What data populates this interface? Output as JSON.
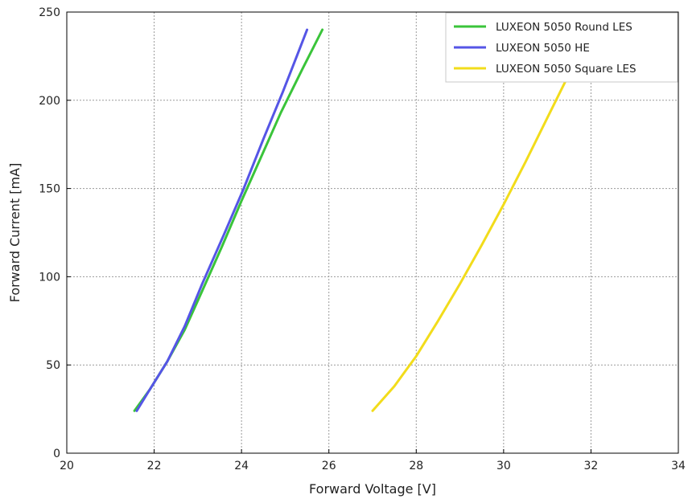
{
  "chart_data": {
    "type": "line",
    "title": "",
    "xlabel": "Forward Voltage [V]",
    "ylabel": "Forward Current [mA]",
    "xlim": [
      20,
      34
    ],
    "ylim": [
      0,
      250
    ],
    "xticks": [
      20,
      22,
      24,
      26,
      28,
      30,
      32,
      34
    ],
    "yticks": [
      0,
      50,
      100,
      150,
      200,
      250
    ],
    "grid": true,
    "legend": "top-right",
    "series": [
      {
        "name": "LUXEON 5050 Round LES",
        "color": "#3ac43a",
        "x": [
          21.55,
          21.9,
          22.3,
          22.7,
          23.1,
          23.55,
          24.0,
          24.45,
          24.9,
          25.4,
          25.85
        ],
        "y": [
          24,
          36,
          52,
          70,
          92,
          117,
          143,
          168,
          193,
          218,
          240
        ]
      },
      {
        "name": "LUXEON 5050 HE",
        "color": "#5555e6",
        "x": [
          21.6,
          21.9,
          22.3,
          22.7,
          23.1,
          23.6,
          24.05,
          24.5,
          24.95,
          25.25,
          25.5
        ],
        "y": [
          24,
          36,
          52,
          72,
          96,
          124,
          150,
          178,
          205,
          224,
          240
        ]
      },
      {
        "name": "LUXEON 5050 Square LES",
        "color": "#f2dc1b",
        "x": [
          27.0,
          27.5,
          28.0,
          28.5,
          29.0,
          29.5,
          30.0,
          30.5,
          31.0,
          31.4,
          31.65
        ],
        "y": [
          24,
          38,
          55,
          75,
          96,
          118,
          141,
          165,
          190,
          210,
          222
        ]
      }
    ]
  }
}
